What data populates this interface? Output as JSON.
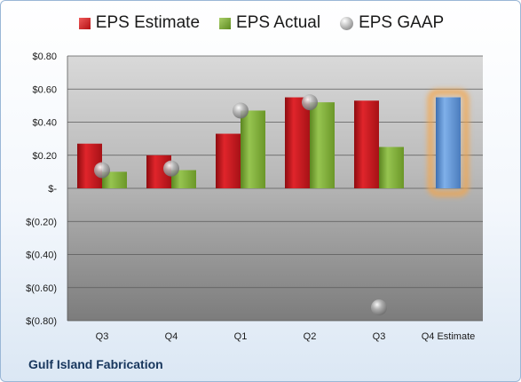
{
  "company": "Gulf Island Fabrication",
  "colors": {
    "estimate": "#c8161d",
    "actual": "#77a33a",
    "gaap": "#9a9a9a",
    "highlight_bar": "#5b8fd1",
    "highlight_glow": "#f5a64a"
  },
  "chart_data": {
    "type": "bar",
    "categories": [
      "Q3",
      "Q4",
      "Q1",
      "Q2",
      "Q3",
      "Q4 Estimate"
    ],
    "series": [
      {
        "name": "EPS Estimate",
        "values": [
          0.27,
          0.2,
          0.33,
          0.55,
          0.53,
          0.55
        ]
      },
      {
        "name": "EPS Actual",
        "values": [
          0.1,
          0.11,
          0.47,
          0.52,
          0.25,
          null
        ]
      },
      {
        "name": "EPS GAAP",
        "values": [
          0.11,
          0.12,
          0.47,
          0.52,
          -0.72,
          null
        ]
      }
    ],
    "yticks": [
      {
        "value": 0.8,
        "label": "$0.80"
      },
      {
        "value": 0.6,
        "label": "$0.60"
      },
      {
        "value": 0.4,
        "label": "$0.40"
      },
      {
        "value": 0.2,
        "label": "$0.20"
      },
      {
        "value": 0.0,
        "label": "$-"
      },
      {
        "value": -0.2,
        "label": "$(0.20)"
      },
      {
        "value": -0.4,
        "label": "$(0.40)"
      },
      {
        "value": -0.6,
        "label": "$(0.60)"
      },
      {
        "value": -0.8,
        "label": "$(0.80)"
      }
    ],
    "ylim": [
      -0.8,
      0.8
    ],
    "grid": true,
    "legend_position": "top",
    "highlighted_category": "Q4 Estimate"
  }
}
